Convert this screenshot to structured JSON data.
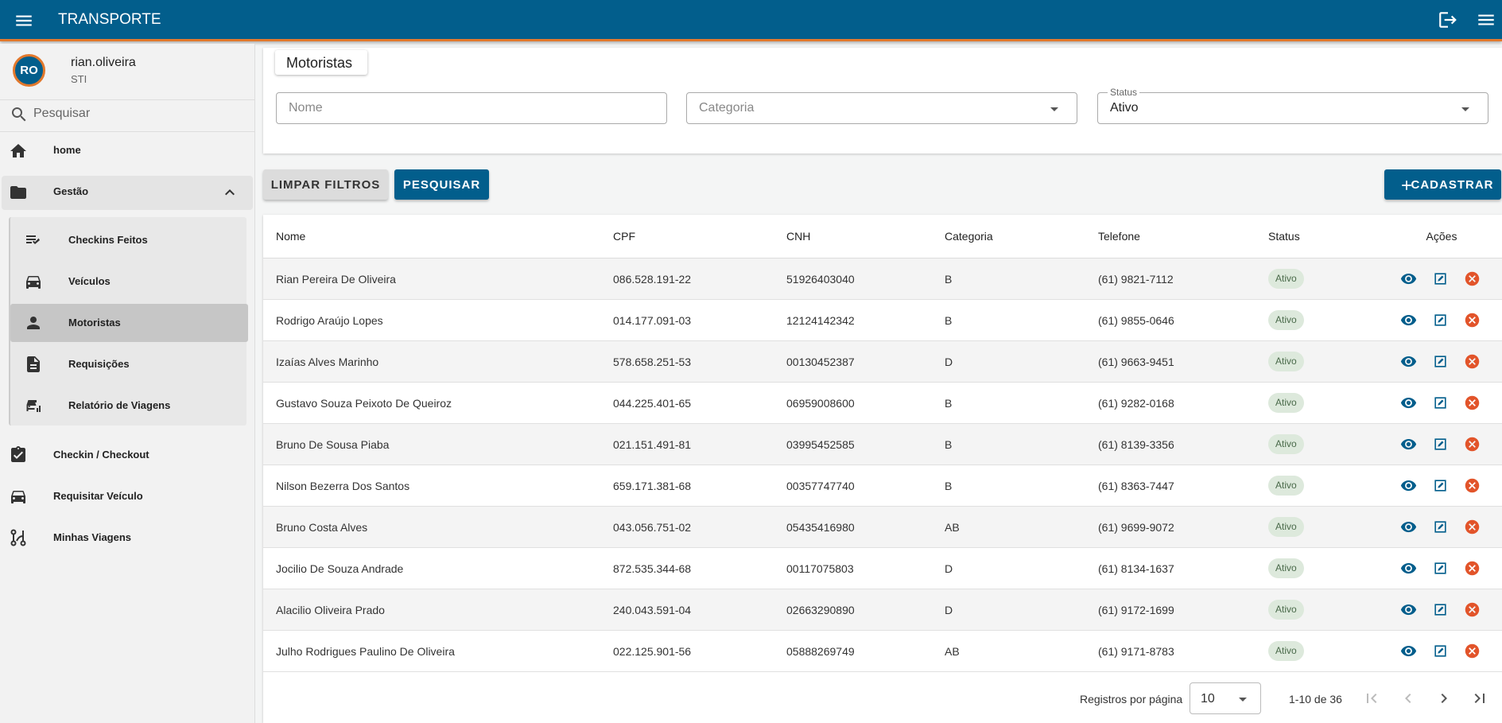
{
  "header": {
    "title": "TRANSPORTE"
  },
  "user": {
    "initials": "RO",
    "name": "rian.oliveira",
    "role": "STI"
  },
  "sidebar": {
    "search_placeholder": "Pesquisar",
    "top_items": [
      "home",
      "Gestão"
    ],
    "sub_items": [
      {
        "label": "Checkins Feitos"
      },
      {
        "label": "Veículos"
      },
      {
        "label": "Motoristas",
        "selected": true
      },
      {
        "label": "Requisições"
      },
      {
        "label": "Relatório de Viagens"
      }
    ],
    "bottom_items": [
      "Checkin / Checkout",
      "Requisitar Veículo",
      "Minhas Viagens"
    ]
  },
  "page_title": "Motoristas",
  "filters": {
    "name_placeholder": "Nome",
    "category_placeholder": "Categoria",
    "status_label": "Status",
    "status_value": "Ativo"
  },
  "buttons": {
    "clear": "LIMPAR FILTROS",
    "search": "PESQUISAR",
    "create": "CADASTRAR"
  },
  "table": {
    "columns": [
      "Nome",
      "CPF",
      "CNH",
      "Categoria",
      "Telefone",
      "Status",
      "Ações"
    ],
    "rows": [
      [
        "Rian Pereira De Oliveira",
        "086.528.191-22",
        "51926403040",
        "B",
        "(61) 9821-7112",
        "Ativo"
      ],
      [
        "Rodrigo Araújo Lopes",
        "014.177.091-03",
        "12124142342",
        "B",
        "(61) 9855-0646",
        "Ativo"
      ],
      [
        "Izaías Alves Marinho",
        "578.658.251-53",
        "00130452387",
        "D",
        "(61) 9663-9451",
        "Ativo"
      ],
      [
        "Gustavo Souza Peixoto De Queiroz",
        "044.225.401-65",
        "06959008600",
        "B",
        "(61) 9282-0168",
        "Ativo"
      ],
      [
        "Bruno De Sousa Piaba",
        "021.151.491-81",
        "03995452585",
        "B",
        "(61) 8139-3356",
        "Ativo"
      ],
      [
        "Nilson Bezerra Dos Santos",
        "659.171.381-68",
        "00357747740",
        "B",
        "(61) 8363-7447",
        "Ativo"
      ],
      [
        "Bruno Costa Alves",
        "043.056.751-02",
        "05435416980",
        "AB",
        "(61) 9699-9072",
        "Ativo"
      ],
      [
        "Jocilio De Souza Andrade",
        "872.535.344-68",
        "00117075803",
        "D",
        "(61) 8134-1637",
        "Ativo"
      ],
      [
        "Alacilio Oliveira Prado",
        "240.043.591-04",
        "02663290890",
        "D",
        "(61) 9172-1699",
        "Ativo"
      ],
      [
        "Julho Rodrigues Paulino De Oliveira",
        "022.125.901-56",
        "05888269749",
        "AB",
        "(61) 9171-8783",
        "Ativo"
      ]
    ]
  },
  "pagination": {
    "rows_per_page_label": "Registros por página",
    "rows_per_page": 10,
    "range": "1-10 de 36"
  }
}
